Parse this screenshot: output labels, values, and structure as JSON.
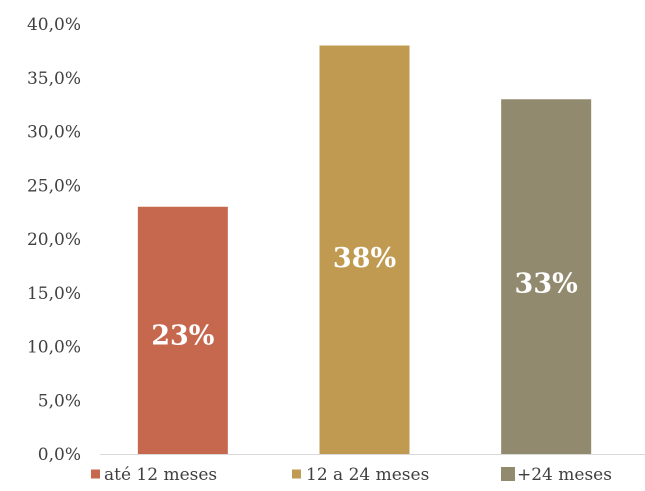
{
  "chart_data": {
    "type": "bar",
    "categories": [
      "até 12 meses",
      "12 a 24 meses",
      "+24 meses"
    ],
    "values": [
      23,
      38,
      33
    ],
    "data_labels": [
      "23%",
      "38%",
      "33%"
    ],
    "colors": [
      "#C5684E",
      "#BF9A50",
      "#918A6E"
    ],
    "y_ticks": [
      "0,0%",
      "5,0%",
      "10,0%",
      "15,0%",
      "20,0%",
      "25,0%",
      "30,0%",
      "35,0%",
      "40,0%"
    ],
    "ylim": [
      0,
      40
    ],
    "title": "",
    "xlabel": "",
    "ylabel": "",
    "grid": false,
    "legend": "bottom"
  }
}
